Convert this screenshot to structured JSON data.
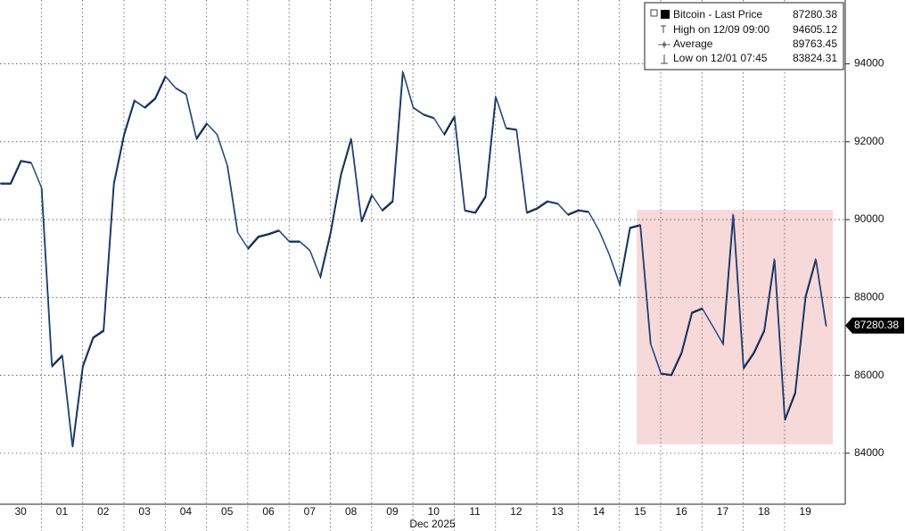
{
  "chart_data": {
    "type": "line",
    "x_label": "Dec 2025",
    "xlim": [
      0,
      20.47
    ],
    "ylim": [
      82690,
      95640
    ],
    "xticks": [
      {
        "value": 0.5,
        "label": "30"
      },
      {
        "value": 1.5,
        "label": "01"
      },
      {
        "value": 2.5,
        "label": "02"
      },
      {
        "value": 3.5,
        "label": "03"
      },
      {
        "value": 4.5,
        "label": "04"
      },
      {
        "value": 5.5,
        "label": "05"
      },
      {
        "value": 6.5,
        "label": "06"
      },
      {
        "value": 7.5,
        "label": "07"
      },
      {
        "value": 8.5,
        "label": "08"
      },
      {
        "value": 9.5,
        "label": "09"
      },
      {
        "value": 10.5,
        "label": "10"
      },
      {
        "value": 11.5,
        "label": "11"
      },
      {
        "value": 12.5,
        "label": "12"
      },
      {
        "value": 13.5,
        "label": "13"
      },
      {
        "value": 14.5,
        "label": "14"
      },
      {
        "value": 15.5,
        "label": "15"
      },
      {
        "value": 16.5,
        "label": "16"
      },
      {
        "value": 17.5,
        "label": "17"
      },
      {
        "value": 18.5,
        "label": "18"
      },
      {
        "value": 19.5,
        "label": "19"
      }
    ],
    "yticks": [
      84000,
      86000,
      88000,
      90000,
      92000,
      94000
    ],
    "grid": true,
    "highlight": {
      "xlim": [
        15.42,
        20.17
      ],
      "ylim": [
        84230,
        90250
      ],
      "color": "#f6cfcf"
    },
    "x": [
      0,
      0.25,
      0.5,
      0.75,
      1,
      1.25,
      1.5,
      1.75,
      2,
      2.25,
      2.5,
      2.75,
      3,
      3.25,
      3.5,
      3.75,
      4,
      4.25,
      4.5,
      4.75,
      5,
      5.25,
      5.5,
      5.75,
      6,
      6.25,
      6.5,
      6.75,
      7,
      7.25,
      7.5,
      7.75,
      8,
      8.25,
      8.5,
      8.75,
      9,
      9.25,
      9.5,
      9.75,
      10,
      10.25,
      10.5,
      10.75,
      11,
      11.25,
      11.5,
      11.75,
      12,
      12.25,
      12.5,
      12.75,
      13,
      13.25,
      13.5,
      13.75,
      14,
      14.25,
      14.5,
      14.75,
      15,
      15.25,
      15.5,
      15.75,
      16,
      16.25,
      16.5,
      16.75,
      17,
      17.25,
      17.5,
      17.75,
      18,
      18.25,
      18.5,
      18.75,
      19,
      19.25,
      19.5,
      19.75,
      20
    ],
    "series": [
      {
        "name": "Bitcoin - Last Price",
        "color": "#1f4f94",
        "values": [
          90940,
          90940,
          91520,
          91470,
          90830,
          86250,
          86520,
          84180,
          86250,
          86980,
          87160,
          90940,
          92200,
          93070,
          92890,
          93120,
          93690,
          93390,
          93230,
          92090,
          92480,
          92200,
          91400,
          89680,
          89270,
          89570,
          89640,
          89730,
          89450,
          89450,
          89220,
          88540,
          89680,
          91170,
          92090,
          89960,
          90640,
          90250,
          90480,
          93810,
          92890,
          92710,
          92620,
          92200,
          92660,
          90250,
          90190,
          90600,
          93170,
          92360,
          92320,
          90190,
          90300,
          90480,
          90420,
          90140,
          90250,
          90210,
          89730,
          89110,
          88350,
          89800,
          89870,
          86820,
          86060,
          86020,
          86590,
          87620,
          87730,
          87280,
          86820,
          90140,
          86200,
          86590,
          87160,
          88990,
          84870,
          85560,
          88030,
          88990,
          87280
        ]
      }
    ],
    "last_price": 87280.38,
    "legend_stats": [
      {
        "label": "Bitcoin - Last Price",
        "value": "87280.38"
      },
      {
        "label": "High on 12/09 09:00",
        "value": "94605.12"
      },
      {
        "label": "Average",
        "value": "89763.45"
      },
      {
        "label": "Low on 12/01 07:45",
        "value": "83824.31"
      }
    ]
  }
}
